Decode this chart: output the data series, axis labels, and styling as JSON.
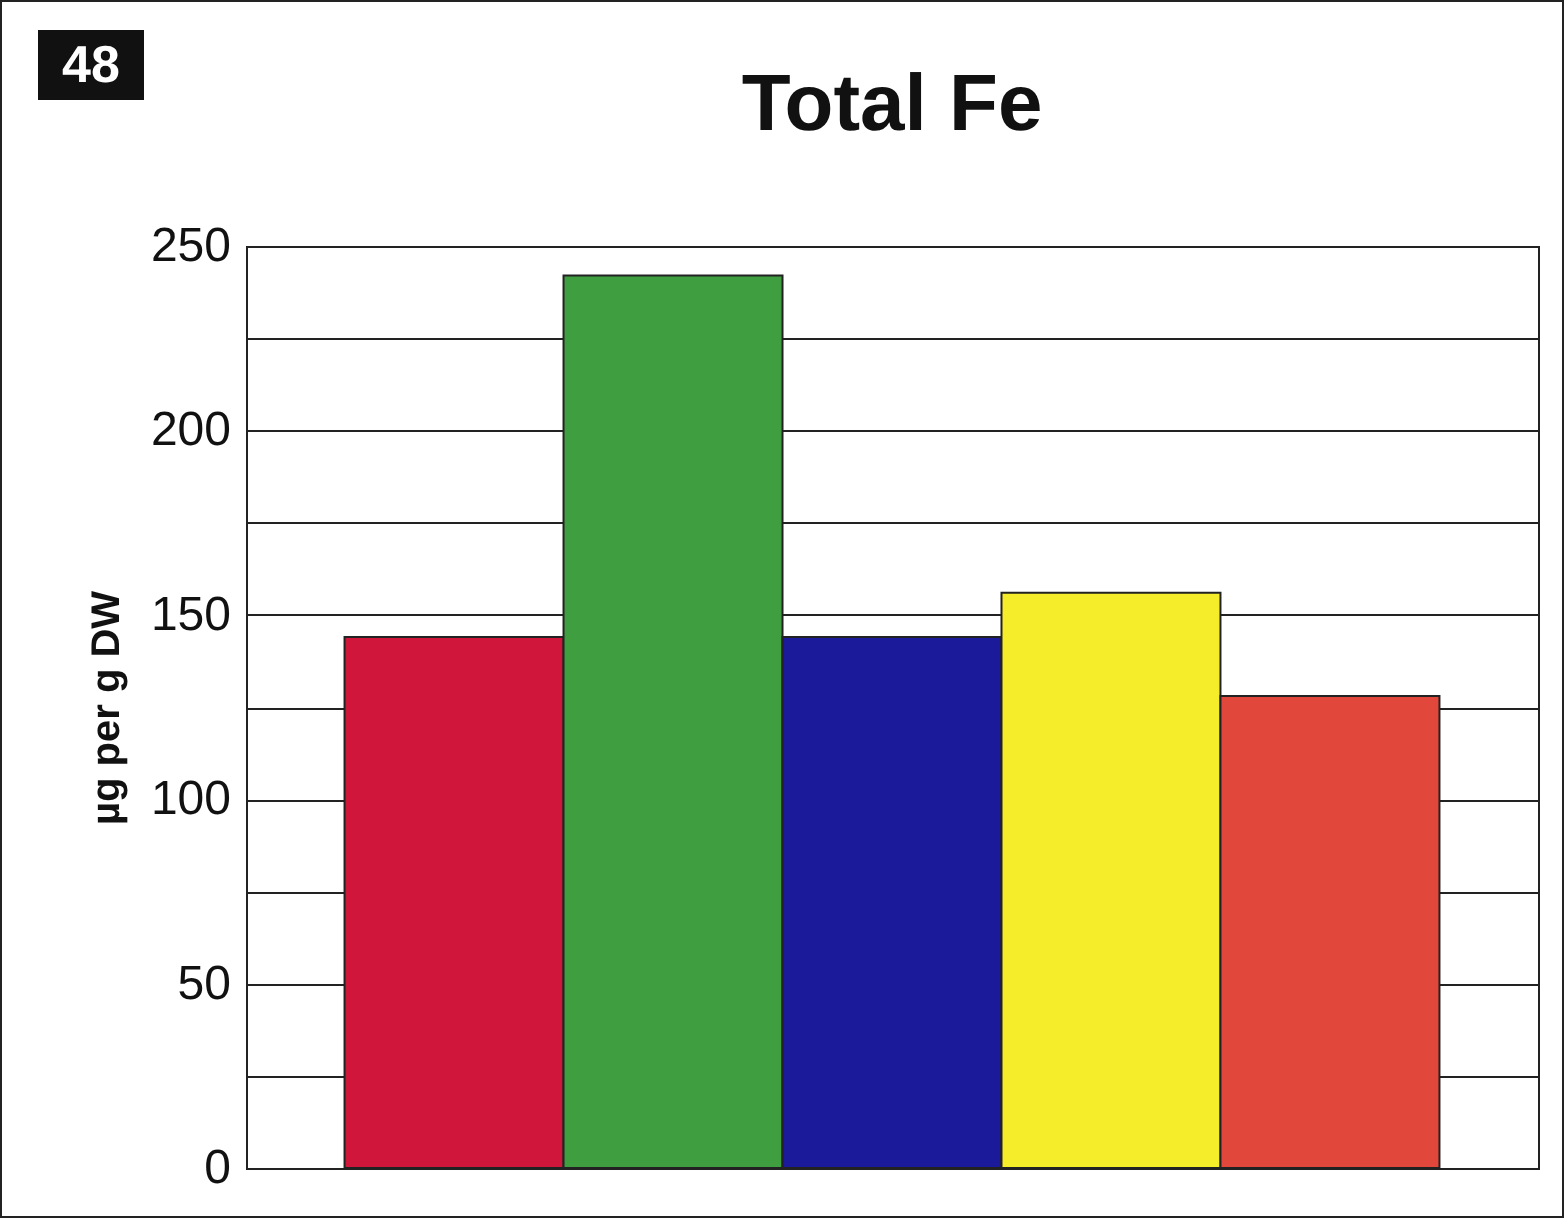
{
  "chart_data": {
    "type": "bar",
    "title": "Total Fe",
    "ylabel": "µg per g DW",
    "annotations": [
      "48"
    ],
    "categories": [
      null,
      null,
      null,
      null,
      null
    ],
    "values": [
      144,
      242,
      144,
      156,
      128
    ],
    "colors": [
      "#d0163a",
      "#3f9e3f",
      "#1a1a9a",
      "#f5ec2a",
      "#e2473c"
    ],
    "ylim": [
      0,
      250
    ],
    "yticks": [
      0,
      {
        "value": 25,
        "label": null
      },
      50,
      {
        "value": 75,
        "label": null
      },
      100,
      {
        "value": 125,
        "label": null
      },
      150,
      {
        "value": 175,
        "label": null
      },
      200,
      {
        "value": 225,
        "label": null
      },
      250
    ],
    "grid": "y"
  }
}
